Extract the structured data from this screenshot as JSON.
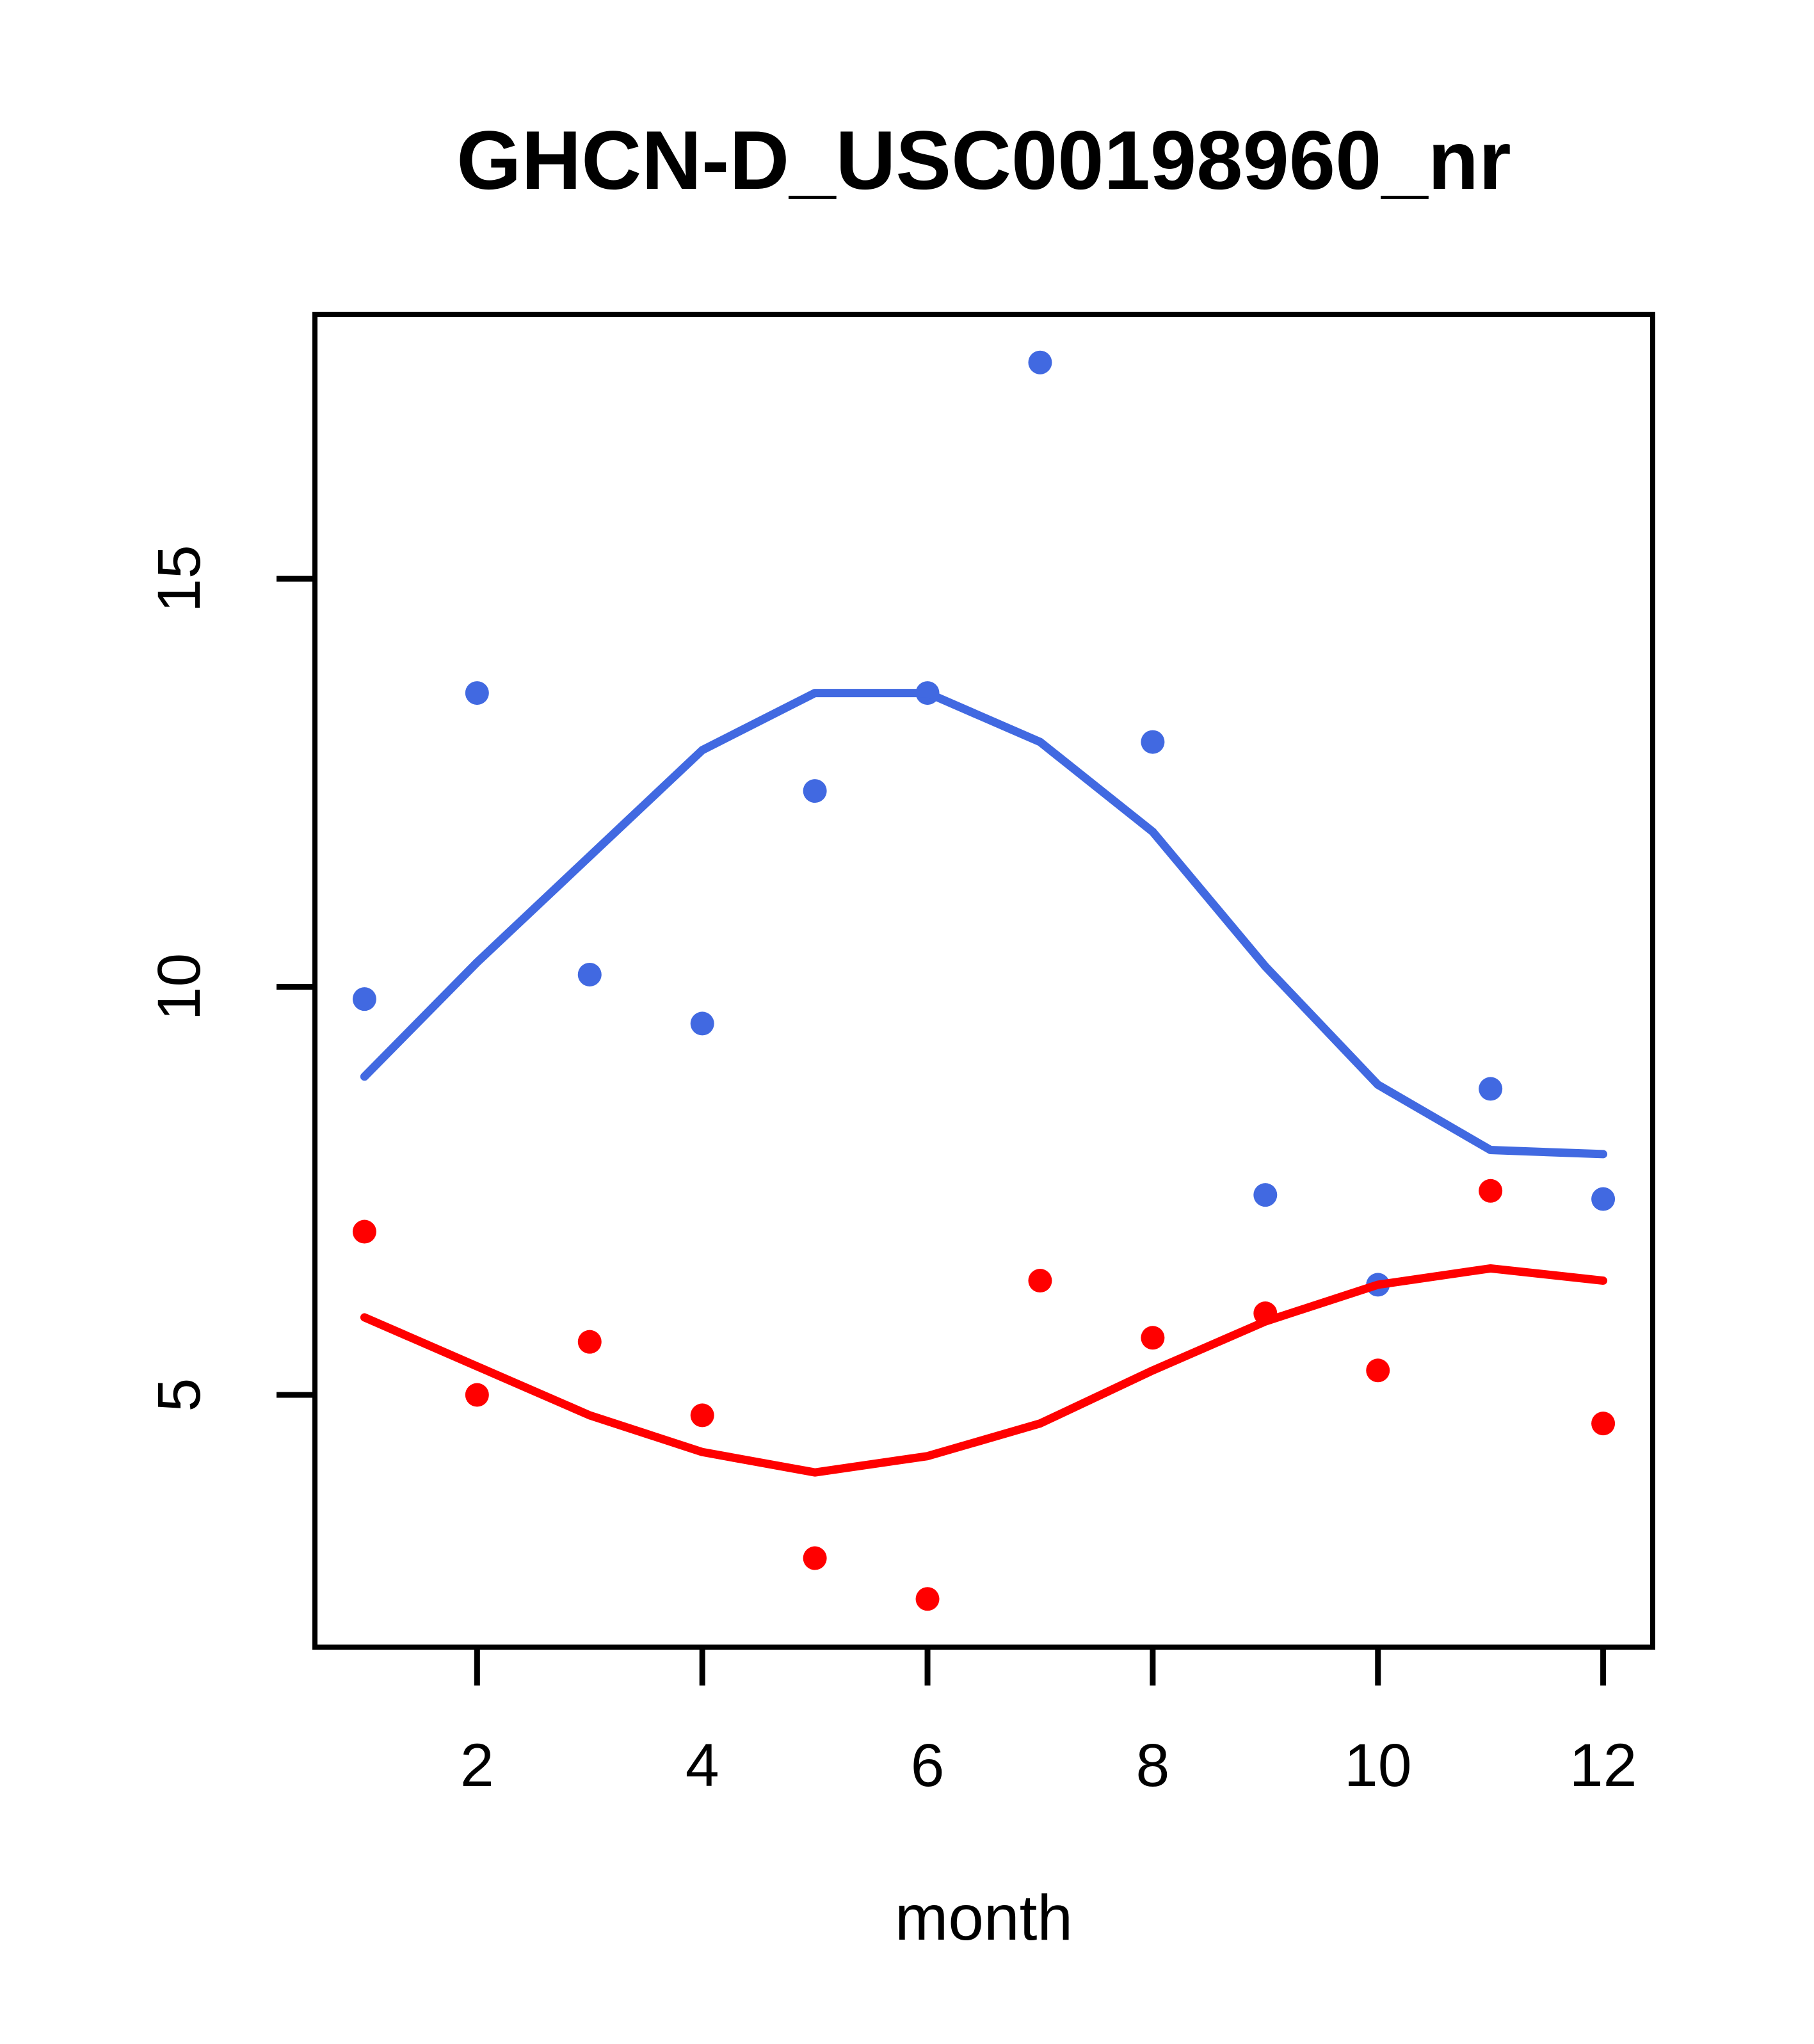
{
  "chart_data": {
    "type": "scatter",
    "title": "GHCN-D_USC00198960_nr",
    "xlabel": "month",
    "ylabel": "",
    "grid": false,
    "legend": "none",
    "xlim": [
      0.56,
      12.44
    ],
    "ylim": [
      1.91,
      18.24
    ],
    "x_ticks": [
      2,
      4,
      6,
      8,
      10,
      12
    ],
    "y_ticks": [
      5,
      10,
      15
    ],
    "x": [
      1,
      2,
      3,
      4,
      5,
      6,
      7,
      8,
      9,
      10,
      11,
      12
    ],
    "series": [
      {
        "name": "blue-points",
        "kind": "scatter",
        "color": "#4169E1",
        "values": [
          9.85,
          13.6,
          10.15,
          9.55,
          12.4,
          13.6,
          17.65,
          13.0,
          7.45,
          6.35,
          8.75,
          7.4
        ]
      },
      {
        "name": "blue-smooth-line",
        "kind": "line",
        "color": "#4169E1",
        "values": [
          8.9,
          10.3,
          11.6,
          12.9,
          13.6,
          13.6,
          13.0,
          11.9,
          10.25,
          8.8,
          8.0,
          7.95
        ]
      },
      {
        "name": "red-points",
        "kind": "scatter",
        "color": "#FF0000",
        "values": [
          7.0,
          5.0,
          5.65,
          4.75,
          3.0,
          2.5,
          6.4,
          5.7,
          6.0,
          5.3,
          7.5,
          4.65
        ]
      },
      {
        "name": "red-smooth-line",
        "kind": "line",
        "color": "#FF0000",
        "values": [
          5.95,
          5.35,
          4.75,
          4.3,
          4.05,
          4.25,
          4.65,
          5.3,
          5.9,
          6.35,
          6.55,
          6.4
        ]
      }
    ],
    "colors": {
      "point_blue": "#4169E1",
      "point_red": "#FF0000",
      "axis": "#000000",
      "background": "#FFFFFF"
    }
  }
}
